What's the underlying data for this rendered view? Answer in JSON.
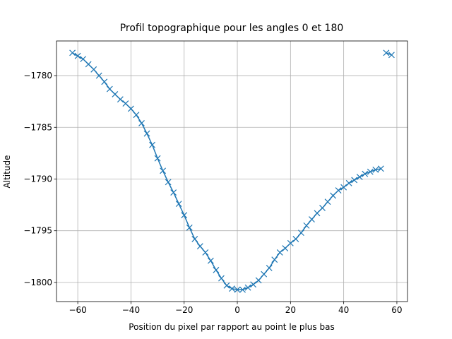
{
  "chart_data": {
    "type": "line",
    "title": "Profil topographique pour les angles 0 et 180",
    "xlabel": "Position du pixel par rapport au point le plus bas",
    "ylabel": "Altitude",
    "x": [
      -62,
      -60,
      -58,
      -56,
      -54,
      -52,
      -50,
      -48,
      -46,
      -44,
      -42,
      -40,
      -38,
      -36,
      -34,
      -32,
      -30,
      -28,
      -26,
      -24,
      -22,
      -20,
      -18,
      -16,
      -14,
      -12,
      -10,
      -8,
      -6,
      -4,
      -2,
      0,
      2,
      4,
      6,
      8,
      10,
      12,
      14,
      16,
      18,
      20,
      22,
      24,
      26,
      28,
      30,
      32,
      34,
      36,
      38,
      40,
      42,
      44,
      46,
      48,
      50,
      52,
      54,
      55,
      56,
      58
    ],
    "series": [
      {
        "color": "#1f77b4",
        "marker": "x",
        "values": [
          -1777.8,
          -1778.1,
          -1778.4,
          -1778.9,
          -1779.4,
          -1780.0,
          -1780.6,
          -1781.3,
          -1781.8,
          -1782.3,
          -1782.7,
          -1783.2,
          -1783.8,
          -1784.6,
          -1785.6,
          -1786.7,
          -1788.0,
          -1789.2,
          -1790.3,
          -1791.3,
          -1792.4,
          -1793.5,
          -1794.7,
          -1795.8,
          -1796.5,
          -1797.1,
          -1797.9,
          -1798.8,
          -1799.6,
          -1800.3,
          -1800.6,
          -1800.7,
          -1800.7,
          -1800.5,
          -1800.2,
          -1799.8,
          -1799.2,
          -1798.6,
          -1797.8,
          -1797.1,
          -1796.7,
          -1796.2,
          -1795.8,
          -1795.2,
          -1794.5,
          -1793.9,
          -1793.3,
          -1792.8,
          -1792.2,
          -1791.6,
          -1791.1,
          -1790.8,
          -1790.4,
          -1790.1,
          -1789.8,
          -1789.5,
          -1789.3,
          -1789.1,
          -1789.0,
          null,
          -1777.8,
          -1778.0
        ]
      }
    ],
    "xlim": [
      -68,
      64
    ],
    "ylim": [
      -1801.85,
      -1776.65
    ],
    "xticks": [
      {
        "value": -60,
        "label": "−60"
      },
      {
        "value": -40,
        "label": "−40"
      },
      {
        "value": -20,
        "label": "−20"
      },
      0,
      20,
      40,
      60
    ],
    "yticks": [
      {
        "value": -1800,
        "label": "−1800"
      },
      {
        "value": -1795,
        "label": "−1795"
      },
      {
        "value": -1790,
        "label": "−1790"
      },
      {
        "value": -1785,
        "label": "−1785"
      },
      {
        "value": -1780,
        "label": "−1780"
      }
    ],
    "grid": true
  }
}
